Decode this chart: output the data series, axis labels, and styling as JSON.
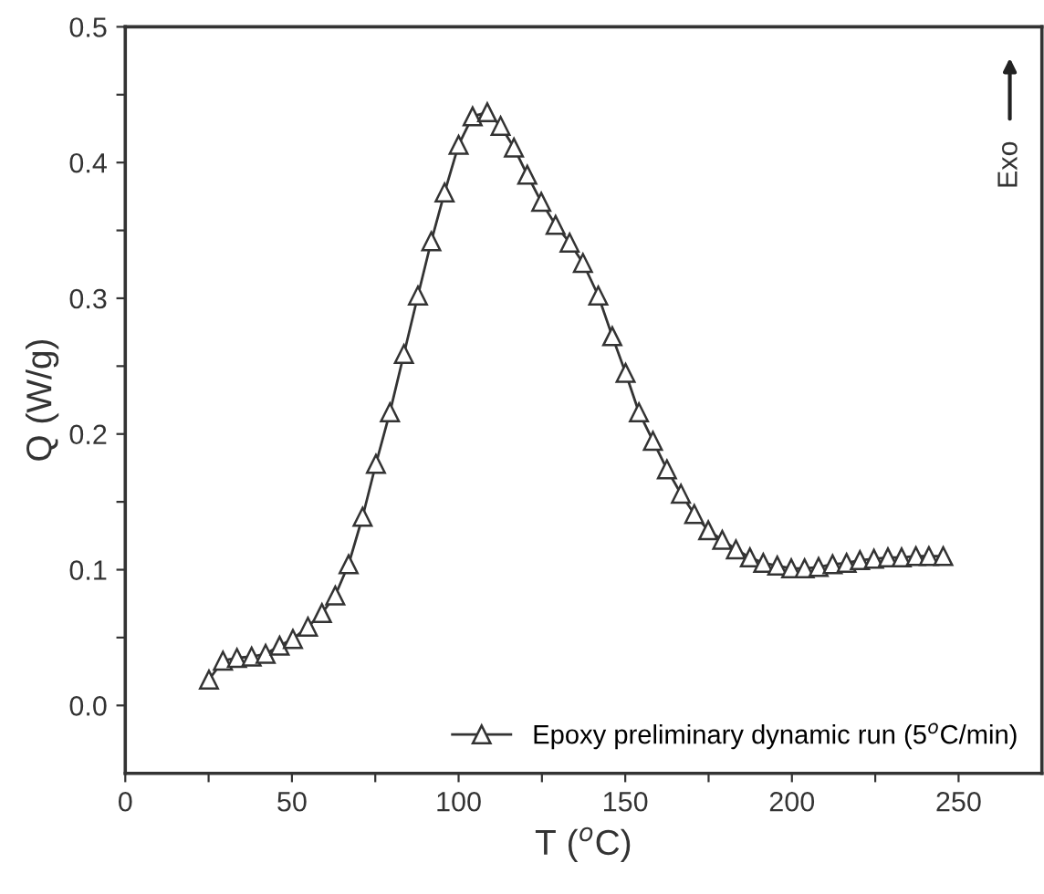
{
  "chart_data": {
    "type": "line",
    "xlabel": "T ($^{o}$C)",
    "ylabel": "Q (W/g)",
    "xlim": [
      0,
      275
    ],
    "ylim": [
      -0.05,
      0.5
    ],
    "xticks": [
      0,
      {
        "value": 25,
        "label": null
      },
      50,
      {
        "value": 75,
        "label": null
      },
      100,
      {
        "value": 125,
        "label": null
      },
      150,
      {
        "value": 175,
        "label": null
      },
      200,
      {
        "value": 225,
        "label": null
      },
      250
    ],
    "yticks": [
      {
        "value": 0.0,
        "label": "0.0"
      },
      {
        "value": 0.05,
        "label": null
      },
      {
        "value": 0.1,
        "label": "0.1"
      },
      {
        "value": 0.15,
        "label": null
      },
      {
        "value": 0.2,
        "label": "0.2"
      },
      {
        "value": 0.25,
        "label": null
      },
      {
        "value": 0.3,
        "label": "0.3"
      },
      {
        "value": 0.35,
        "label": null
      },
      {
        "value": 0.4,
        "label": "0.4"
      },
      {
        "value": 0.45,
        "label": null
      },
      {
        "value": 0.5,
        "label": "0.5"
      }
    ],
    "grid": false,
    "legend": "bottom right",
    "marker": "triangle",
    "line_style": "solid",
    "annotations": [
      "Exo"
    ],
    "series": [
      {
        "name": "Epoxy preliminary dynamic run (5$^{o}$C/min)",
        "color": "#333333",
        "x": [
          25.1,
          29.3,
          33.5,
          37.9,
          42.1,
          46.3,
          50.3,
          54.8,
          59.0,
          63.0,
          67.0,
          71.2,
          75.2,
          79.4,
          83.6,
          87.8,
          91.8,
          95.8,
          100.0,
          104.2,
          108.6,
          112.6,
          116.6,
          120.6,
          124.8,
          129.1,
          133.3,
          137.3,
          141.9,
          146.1,
          150.1,
          154.1,
          158.3,
          162.5,
          166.7,
          170.7,
          174.9,
          179.1,
          183.2,
          187.4,
          191.4,
          195.6,
          199.8,
          203.8,
          208.0,
          212.2,
          216.4,
          220.4,
          224.6,
          228.8,
          232.9,
          237.2,
          241.1,
          245.4
        ],
        "values": [
          0.019,
          0.033,
          0.035,
          0.036,
          0.038,
          0.044,
          0.049,
          0.058,
          0.068,
          0.081,
          0.104,
          0.139,
          0.178,
          0.216,
          0.259,
          0.302,
          0.342,
          0.378,
          0.413,
          0.434,
          0.437,
          0.427,
          0.411,
          0.391,
          0.371,
          0.354,
          0.341,
          0.326,
          0.302,
          0.272,
          0.245,
          0.216,
          0.195,
          0.174,
          0.156,
          0.141,
          0.129,
          0.122,
          0.115,
          0.109,
          0.105,
          0.103,
          0.101,
          0.101,
          0.102,
          0.104,
          0.105,
          0.107,
          0.108,
          0.109,
          0.109,
          0.11,
          0.11,
          0.11
        ]
      }
    ]
  }
}
